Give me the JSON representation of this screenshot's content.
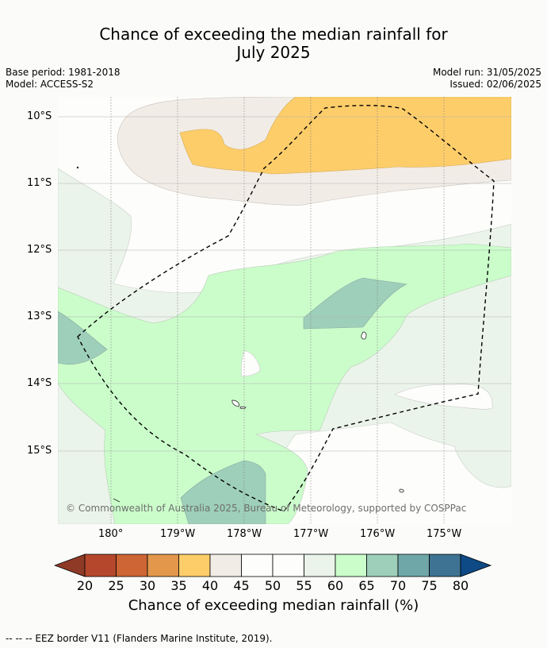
{
  "title_line1": "Chance of exceeding the median rainfall for",
  "title_line2": "July 2025",
  "base_period": "Base period: 1981-2018",
  "model": "Model: ACCESS-S2",
  "model_run": "Model run: 31/05/2025",
  "issued": "Issued: 02/06/2025",
  "lat_labels": [
    "10°S",
    "11°S",
    "12°S",
    "13°S",
    "14°S",
    "15°S"
  ],
  "lon_labels": [
    "180°",
    "179°W",
    "178°W",
    "177°W",
    "176°W",
    "175°W"
  ],
  "copyright": "© Commonwealth of Australia 2025, Bureau of Meteorology, supported by COSPPac",
  "colorbar": {
    "ticks": [
      "20",
      "25",
      "30",
      "35",
      "40",
      "45",
      "50",
      "55",
      "60",
      "65",
      "70",
      "75",
      "80"
    ],
    "colors": [
      "#8e3a26",
      "#b5482c",
      "#cd6535",
      "#e2974b",
      "#fdcd6a",
      "#f2ece6",
      "#fdfdfb",
      "#fdfdfb",
      "#ebf4ea",
      "#cbfdcb",
      "#9ecfba",
      "#6fa7a9",
      "#3e7393",
      "#0e4a85"
    ],
    "label": "Chance of exceeding median rainfall (%)"
  },
  "footer": "--  --  -- EEZ border V11 (Flanders Marine Institute, 2019)."
}
